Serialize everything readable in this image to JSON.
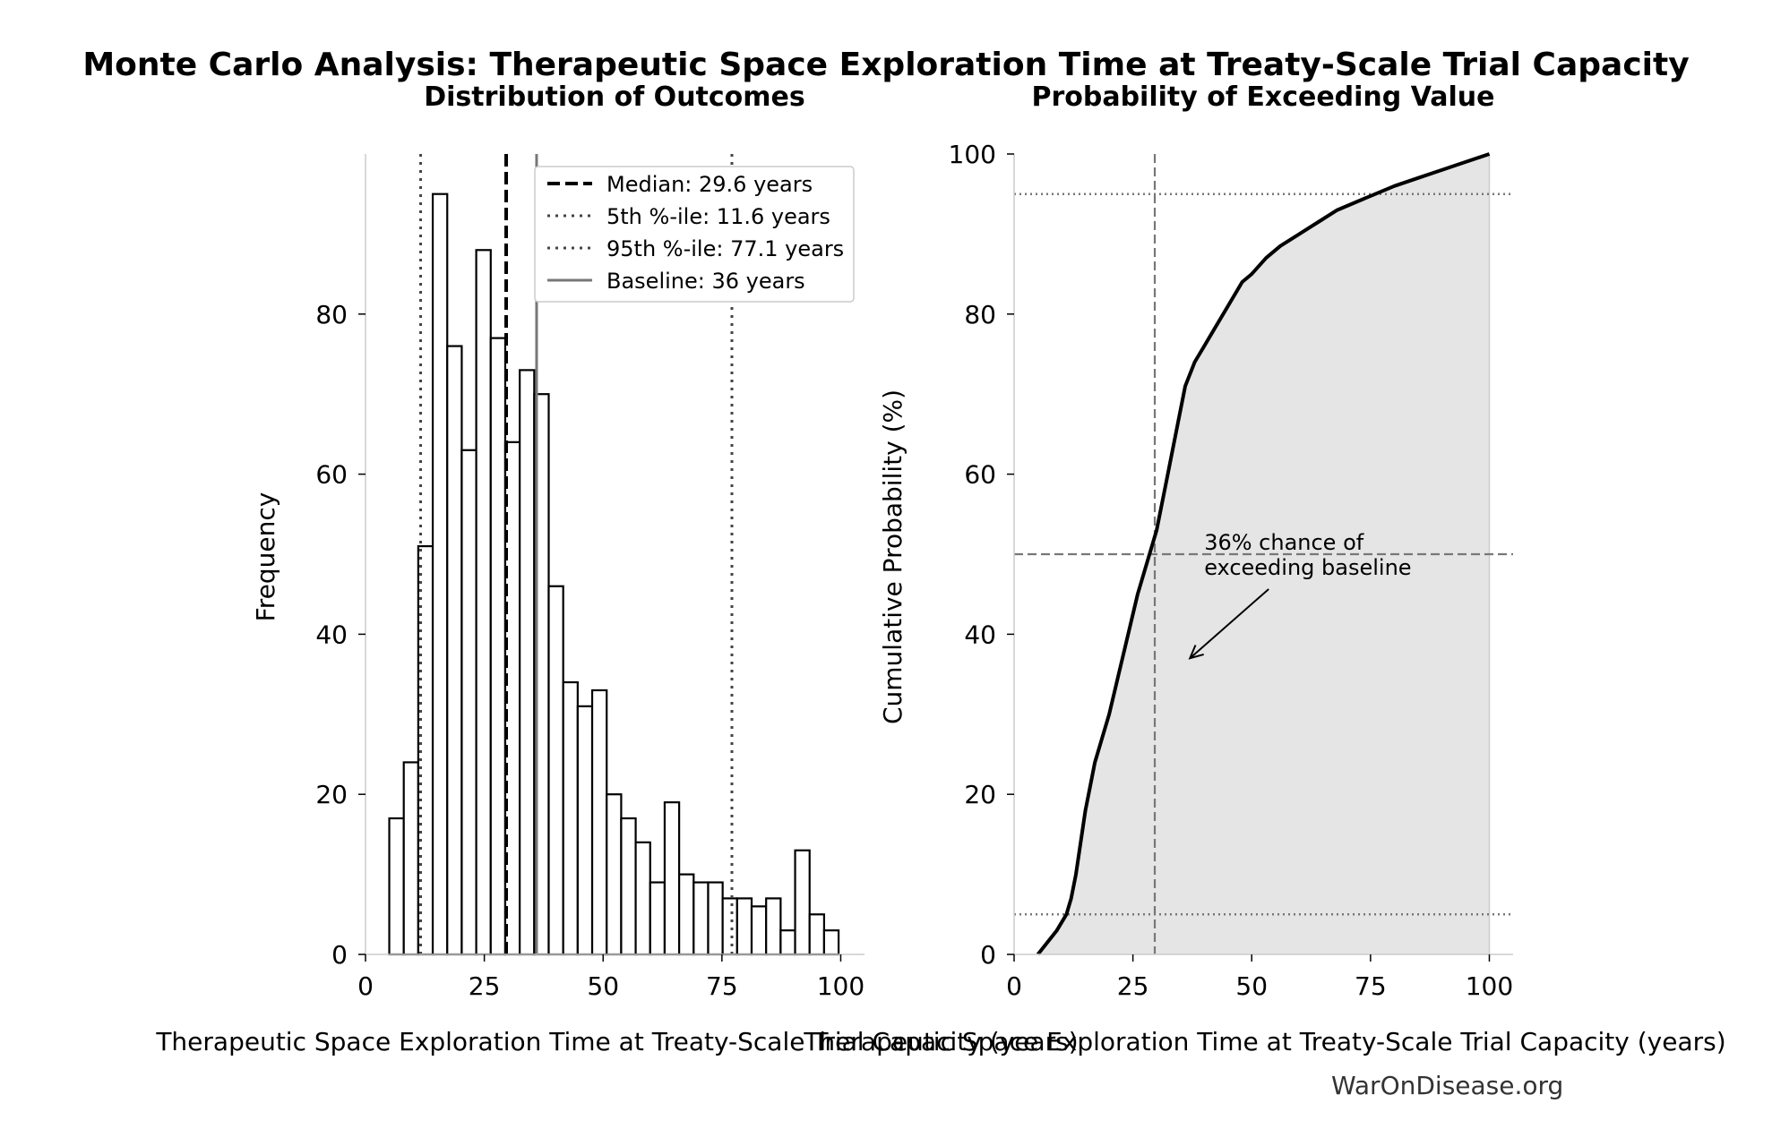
{
  "figure": {
    "title": "Monte Carlo Analysis: Therapeutic Space Exploration Time at Treaty-Scale Trial Capacity",
    "watermark": "WarOnDisease.org"
  },
  "chart_data": [
    {
      "type": "bar",
      "title": "Distribution of Outcomes",
      "xlabel": "Therapeutic Space Exploration Time at Treaty-Scale Trial Capacity (years)",
      "ylabel": "Frequency",
      "xlim": [
        0,
        105
      ],
      "ylim": [
        0,
        100
      ],
      "xticks": [
        0,
        25,
        50,
        75,
        100
      ],
      "yticks": [
        0,
        20,
        40,
        60,
        80
      ],
      "bin_width": 3.05,
      "bin_start": 5.0,
      "values": [
        17,
        24,
        51,
        95,
        76,
        63,
        88,
        77,
        64,
        73,
        70,
        46,
        34,
        31,
        33,
        20,
        17,
        14,
        9,
        19,
        10,
        9,
        9,
        7,
        7,
        6,
        7,
        3,
        13,
        5,
        3
      ],
      "grid": false,
      "legend_position": "top-right",
      "reference_lines": [
        {
          "label": "Median: 29.6 years",
          "x": 29.6,
          "style": "dashed",
          "color": "#000000"
        },
        {
          "label": "5th %-ile: 11.6 years",
          "x": 11.6,
          "style": "dotted",
          "color": "#444444"
        },
        {
          "label": "95th %-ile: 77.1 years",
          "x": 77.1,
          "style": "dotted",
          "color": "#444444"
        },
        {
          "label": "Baseline: 36 years",
          "x": 36,
          "style": "solid",
          "color": "#777777"
        }
      ]
    },
    {
      "type": "line",
      "title": "Probability of Exceeding Value",
      "xlabel": "Therapeutic Space Exploration Time at Treaty-Scale Trial Capacity (years)",
      "ylabel": "Cumulative Probability (%)",
      "xlim": [
        0,
        105
      ],
      "ylim": [
        0,
        100
      ],
      "xticks": [
        0,
        25,
        50,
        75,
        100
      ],
      "yticks": [
        0,
        20,
        40,
        60,
        80,
        100
      ],
      "grid": false,
      "x": [
        5,
        7,
        9,
        11,
        12,
        13,
        14,
        15,
        16,
        17,
        18,
        20,
        22,
        24,
        26,
        28,
        30,
        32,
        34,
        36,
        38,
        40,
        42,
        45,
        48,
        50,
        53,
        56,
        60,
        64,
        68,
        72,
        76,
        80,
        85,
        90,
        95,
        100
      ],
      "y": [
        0,
        1.5,
        3,
        5,
        7,
        10,
        14,
        18,
        21,
        24,
        26,
        30,
        35,
        40,
        45,
        49,
        53,
        59,
        65,
        71,
        74,
        76,
        78,
        81,
        84,
        85,
        87,
        88.5,
        90,
        91.5,
        93,
        94,
        95,
        96,
        97,
        98,
        99,
        100
      ],
      "reference_lines": [
        {
          "orientation": "horizontal",
          "y": 95,
          "style": "dotted"
        },
        {
          "orientation": "horizontal",
          "y": 50,
          "style": "dashed"
        },
        {
          "orientation": "horizontal",
          "y": 5,
          "style": "dotted"
        },
        {
          "orientation": "vertical",
          "x": 29.6,
          "style": "dashed"
        }
      ],
      "annotation": {
        "text_lines": [
          "36% chance of",
          "exceeding baseline"
        ],
        "text_at": [
          40,
          49
        ],
        "arrow_to": [
          37,
          37
        ]
      }
    }
  ]
}
